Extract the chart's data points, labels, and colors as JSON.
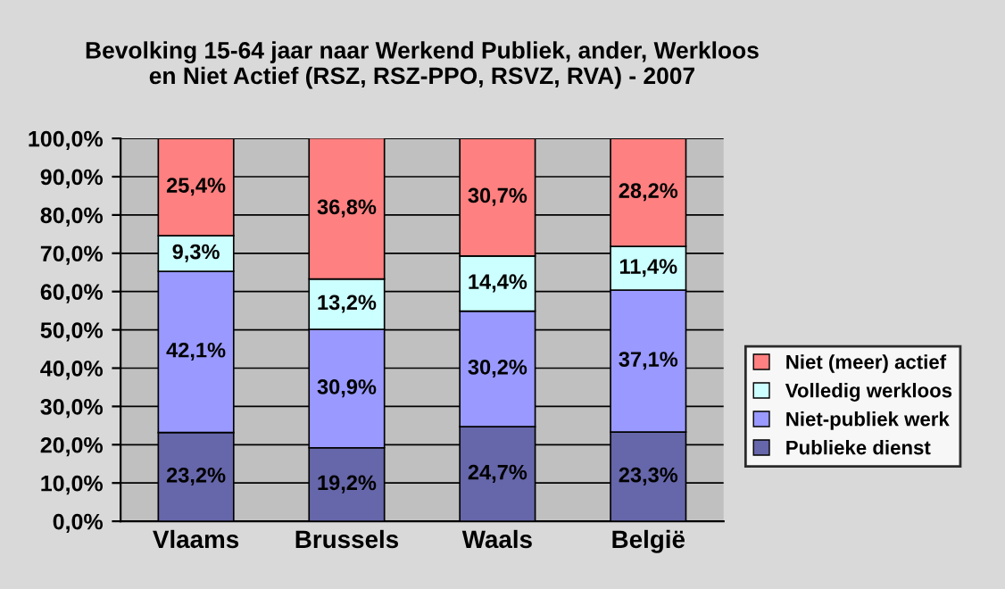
{
  "chart_data": {
    "type": "bar",
    "title": "Bevolking 15-64 jaar naar Werkend Publiek, ander, Werkloos\nen Niet Actief (RSZ, RSZ-PPO, RSVZ, RVA) - 2007",
    "categories": [
      "Vlaams",
      "Brussels",
      "Waals",
      "België"
    ],
    "stacked": true,
    "series": [
      {
        "name": "Publieke dienst",
        "color": "#6666aa",
        "values": [
          23.2,
          19.2,
          24.7,
          23.3
        ],
        "value_labels": [
          "23,2%",
          "19,2%",
          "24,7%",
          "23,3%"
        ]
      },
      {
        "name": "Niet-publiek werk",
        "color": "#9999ff",
        "values": [
          42.1,
          30.9,
          30.2,
          37.1
        ],
        "value_labels": [
          "42,1%",
          "30,9%",
          "30,2%",
          "37,1%"
        ]
      },
      {
        "name": "Volledig werkloos",
        "color": "#ccffff",
        "values": [
          9.3,
          13.2,
          14.4,
          11.4
        ],
        "value_labels": [
          "9,3%",
          "13,2%",
          "14,4%",
          "11,4%"
        ]
      },
      {
        "name": "Niet (meer) actief",
        "color": "#ff8080",
        "values": [
          25.4,
          36.8,
          30.7,
          28.2
        ],
        "value_labels": [
          "25,4%",
          "36,8%",
          "30,7%",
          "28,2%"
        ]
      }
    ],
    "ylim": [
      0,
      100
    ],
    "yticks": [
      {
        "value": 0,
        "label": "0,0%"
      },
      {
        "value": 10,
        "label": "10,0%"
      },
      {
        "value": 20,
        "label": "20,0%"
      },
      {
        "value": 30,
        "label": "30,0%"
      },
      {
        "value": 40,
        "label": "40,0%"
      },
      {
        "value": 50,
        "label": "50,0%"
      },
      {
        "value": 60,
        "label": "60,0%"
      },
      {
        "value": 70,
        "label": "70,0%"
      },
      {
        "value": 80,
        "label": "80,0%"
      },
      {
        "value": 90,
        "label": "90,0%"
      },
      {
        "value": 100,
        "label": "100,0%"
      }
    ],
    "grid": "y",
    "legend": "right"
  }
}
